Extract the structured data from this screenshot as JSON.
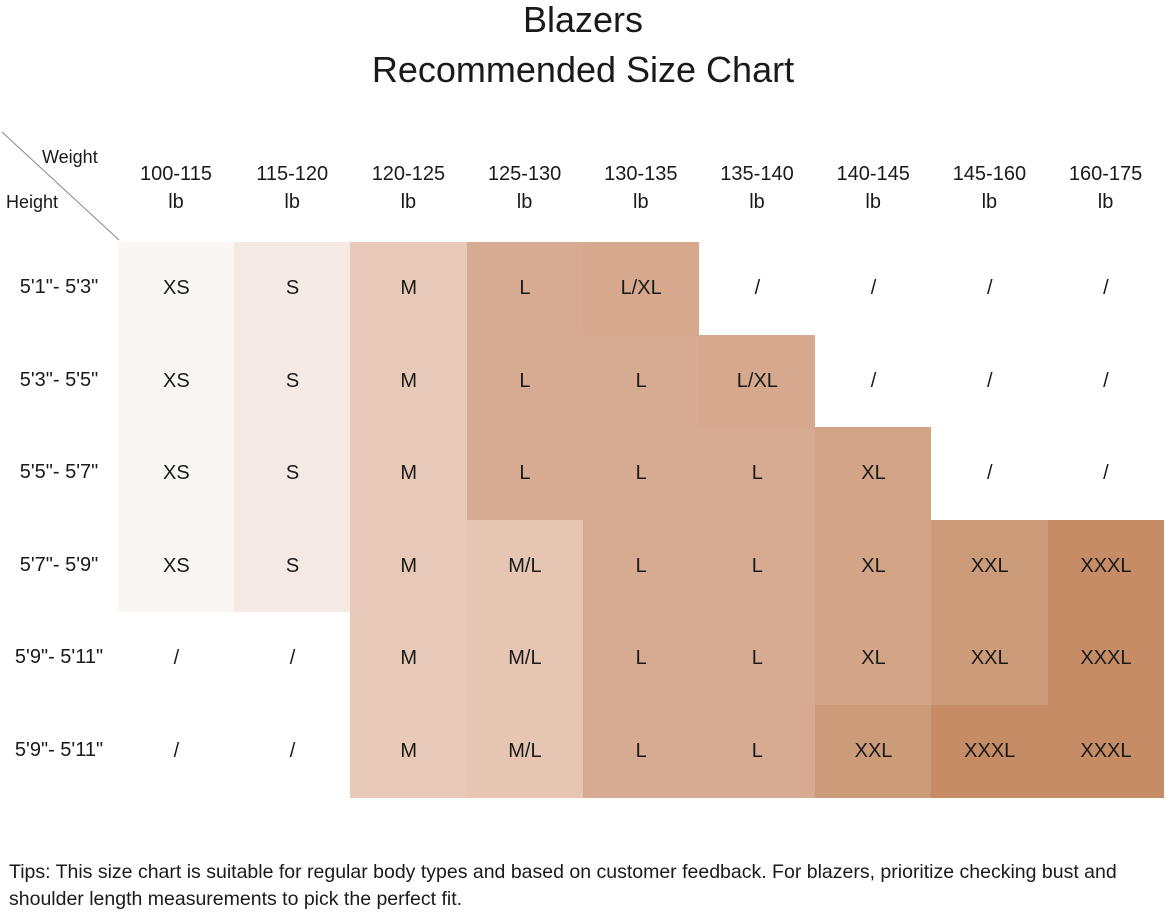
{
  "chart_data": {
    "type": "table",
    "title": "Blazers",
    "subtitle": "Recommended Size Chart",
    "corner": {
      "col_label": "Weight",
      "row_label": "Height"
    },
    "columns": [
      {
        "range": "100-115",
        "unit": "lb"
      },
      {
        "range": "115-120",
        "unit": "lb"
      },
      {
        "range": "120-125",
        "unit": "lb"
      },
      {
        "range": "125-130",
        "unit": "lb"
      },
      {
        "range": "130-135",
        "unit": "lb"
      },
      {
        "range": "135-140",
        "unit": "lb"
      },
      {
        "range": "140-145",
        "unit": "lb"
      },
      {
        "range": "145-160",
        "unit": "lb"
      },
      {
        "range": "160-175",
        "unit": "lb"
      }
    ],
    "rows": [
      {
        "height": "5'1\"- 5'3\"",
        "sizes": [
          "XS",
          "S",
          "M",
          "L",
          "L/XL",
          "/",
          "/",
          "/",
          "/"
        ]
      },
      {
        "height": "5'3\"- 5'5\"",
        "sizes": [
          "XS",
          "S",
          "M",
          "L",
          "L",
          "L/XL",
          "/",
          "/",
          "/"
        ]
      },
      {
        "height": "5'5\"- 5'7\"",
        "sizes": [
          "XS",
          "S",
          "M",
          "L",
          "L",
          "L",
          "XL",
          "/",
          "/"
        ]
      },
      {
        "height": "5'7\"- 5'9\"",
        "sizes": [
          "XS",
          "S",
          "M",
          "M/L",
          "L",
          "L",
          "XL",
          "XXL",
          "XXXL"
        ]
      },
      {
        "height": "5'9\"- 5'11\"",
        "sizes": [
          "/",
          "/",
          "M",
          "M/L",
          "L",
          "L",
          "XL",
          "XXL",
          "XXXL"
        ]
      },
      {
        "height": "5'9\"- 5'11\"",
        "sizes": [
          "/",
          "/",
          "M",
          "M/L",
          "L",
          "L",
          "XXL",
          "XXXL",
          "XXXL"
        ]
      }
    ],
    "size_colors": {
      "XS": "#faf6f4",
      "S": "#f5e9e4",
      "M": "#e8c8b6",
      "M/L": "#e6c5b3",
      "L": "#d7ab92",
      "L/XL": "#d6a88e",
      "XL": "#d3a485",
      "XXL": "#cc9b79",
      "XXXL": "#c58c66",
      "/": "#ffffff"
    },
    "tips": "Tips: This size chart is suitable for regular body types and based on customer feedback. For blazers, prioritize checking bust and shoulder length measurements to pick the perfect fit."
  }
}
